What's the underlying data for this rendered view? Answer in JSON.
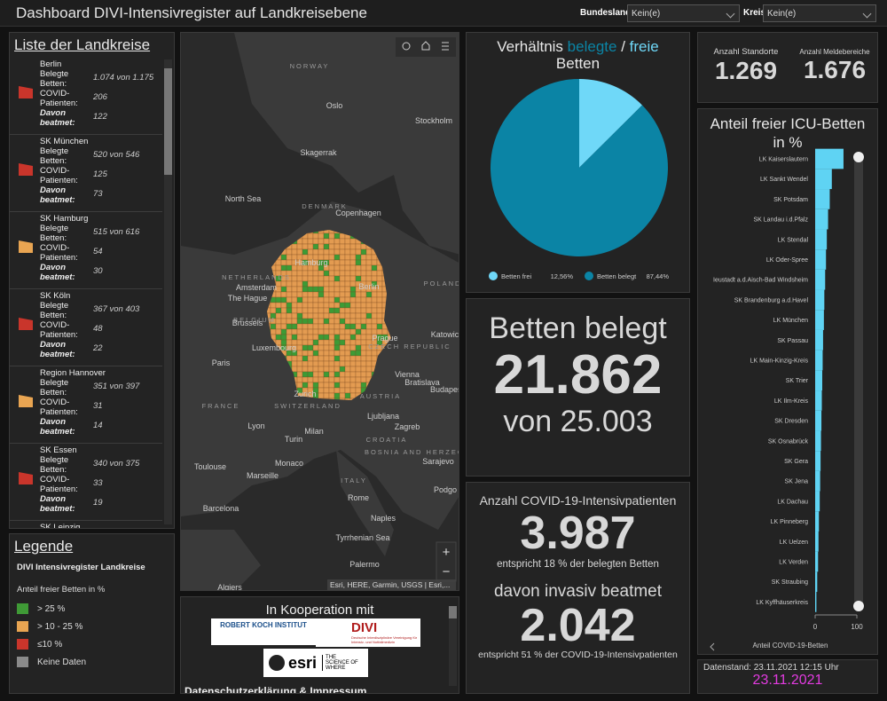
{
  "header": {
    "title": "Dashboard DIVI-Intensivregister auf Landkreisebene",
    "filters": [
      {
        "label": "Bundesland",
        "value": "Kein(e)"
      },
      {
        "label": "Kreis",
        "value": "Kein(e)"
      }
    ]
  },
  "district_list": {
    "title": "Liste der Landkreise",
    "items": [
      {
        "name": "Berlin",
        "color": "#c9352b",
        "fields": [
          {
            "label": "Belegte Betten:",
            "value": "1.074 von 1.175"
          },
          {
            "label": "COVID-Patienten:",
            "value": "206"
          },
          {
            "label": "Davon beatmet:",
            "value": "122"
          }
        ]
      },
      {
        "name": "SK München",
        "color": "#c9352b",
        "fields": [
          {
            "label": "Belegte Betten:",
            "value": "520 von 546"
          },
          {
            "label": "COVID-Patienten:",
            "value": "125"
          },
          {
            "label": "Davon beatmet:",
            "value": "73"
          }
        ]
      },
      {
        "name": "SK Hamburg",
        "color": "#e9a552",
        "fields": [
          {
            "label": "Belegte Betten:",
            "value": "515 von 616"
          },
          {
            "label": "COVID-Patienten:",
            "value": "54"
          },
          {
            "label": "Davon beatmet:",
            "value": "30"
          }
        ]
      },
      {
        "name": "SK Köln",
        "color": "#c9352b",
        "fields": [
          {
            "label": "Belegte Betten:",
            "value": "367 von 403"
          },
          {
            "label": "COVID-Patienten:",
            "value": "48"
          },
          {
            "label": "Davon beatmet:",
            "value": "22"
          }
        ]
      },
      {
        "name": "Region Hannover",
        "color": "#e9a552",
        "fields": [
          {
            "label": "Belegte Betten:",
            "value": "351 von 397"
          },
          {
            "label": "COVID-Patienten:",
            "value": "31"
          },
          {
            "label": "Davon beatmet:",
            "value": "14"
          }
        ]
      },
      {
        "name": "SK Essen",
        "color": "#c9352b",
        "fields": [
          {
            "label": "Belegte Betten:",
            "value": "340 von 375"
          },
          {
            "label": "COVID-Patienten:",
            "value": "33"
          },
          {
            "label": "Davon beatmet:",
            "value": "19"
          }
        ]
      },
      {
        "name": "SK Leipzig",
        "color": "#c9352b",
        "fields": []
      }
    ]
  },
  "legend": {
    "title": "Legende",
    "layer": "DIVI Intensivregister Landkreise",
    "field": "Anteil freier Betten in %",
    "classes": [
      {
        "label": "> 25 %",
        "color": "#3f9a36"
      },
      {
        "label": "> 10 - 25 %",
        "color": "#e9a552"
      },
      {
        "label": "≤10 %",
        "color": "#c9352b"
      },
      {
        "label": "Keine Daten",
        "color": "#8a8a8a"
      }
    ]
  },
  "map": {
    "labels": [
      "NORWAY",
      "Oslo",
      "Stockholm",
      "Skagerrak",
      "North Sea",
      "DENMARK",
      "Copenhagen",
      "NETHERLANDS",
      "Amsterdam",
      "The Hague",
      "Hamburg",
      "Berlin",
      "POLAND",
      "BELGIUM",
      "Brussels",
      "Luxembourg",
      "Paris",
      "FRANCE",
      "Prague",
      "CZECH REPUBLIC",
      "Katowice",
      "Vienna",
      "Bratislava",
      "AUSTRIA",
      "Budapest",
      "Zurich",
      "SWITZERLAND",
      "Ljubljana",
      "Zagreb",
      "Lyon",
      "Milan",
      "Turin",
      "CROATIA",
      "BOSNIA AND HERZEGOVINA",
      "Sarajevo",
      "Toulouse",
      "Marseille",
      "Monaco",
      "ITALY",
      "Rome",
      "Barcelona",
      "Naples",
      "Tyrrhenian Sea",
      "Palermo",
      "Podgo",
      "Algiers"
    ],
    "controls": [
      "+",
      "−"
    ],
    "attribution": "Esri, HERE, Garmin, USGS | Esri,..."
  },
  "cooperation": {
    "title": "In Kooperation mit",
    "logos": [
      "ROBERT KOCH INSTITUT",
      "DIVI",
      "Deutsche Interdisziplinäre Vereinigung für Intensiv- und Notfallmedizin",
      "esri",
      "THE SCIENCE OF WHERE"
    ],
    "link": "Datenschutzerklärung & Impressum"
  },
  "stats": [
    {
      "label": "Anzahl Standorte",
      "value": "1.269"
    },
    {
      "label": "Anzahl Meldebereiche",
      "value": "1.676"
    }
  ],
  "beds": {
    "title": "Betten belegt",
    "value": "21.862",
    "total": "von 25.003"
  },
  "covid": {
    "title": "Anzahl COVID-19-Intensivpatienten",
    "value": "3.987",
    "note": "entspricht 18 % der belegten Betten",
    "ventilated_title": "davon invasiv beatmet",
    "ventilated_value": "2.042",
    "ventilated_note": "entspricht 51 % der COVID-19-Intensivpatienten"
  },
  "date": {
    "label": "Datenstand: 23.11.2021 12:15 Uhr",
    "value": "23.11.2021"
  },
  "chart_data": [
    {
      "type": "pie",
      "title_parts": [
        "Verhältnis",
        "belegte",
        "/",
        "freie",
        "Betten"
      ],
      "categories": [
        "Betten frei",
        "Betten belegt"
      ],
      "values": [
        12.56,
        87.44
      ],
      "value_labels": [
        "12,56%",
        "87,44%"
      ],
      "colors": [
        "#6fd8f8",
        "#0b84a5"
      ]
    },
    {
      "type": "bar",
      "orientation": "horizontal",
      "title": "Anteil freier ICU-Betten in %",
      "x_label": "Anteil COVID-19-Betten",
      "categories": [
        "LK Kaiserslautern",
        "LK Sankt Wendel",
        "SK Potsdam",
        "SK Landau i.d.Pfalz",
        "LK Stendal",
        "LK Oder-Spree",
        "Ieustadt a.d.Aisch-Bad Windsheim",
        "SK Brandenburg a.d.Havel",
        "LK München",
        "SK Passau",
        "LK Main-Kinzig-Kreis",
        "SK Trier",
        "LK Ilm-Kreis",
        "SK Dresden",
        "SK Osnabrück",
        "SK Gera",
        "SK Jena",
        "LK Dachau",
        "LK Pinneberg",
        "LK Uelzen",
        "LK Verden",
        "SK Straubing",
        "LK Kyffhäuserkreis"
      ],
      "values": [
        68,
        40,
        35,
        31,
        28,
        26,
        24,
        22,
        21,
        19,
        18,
        17,
        16,
        15,
        14,
        13,
        12,
        11,
        9,
        8,
        7,
        5,
        3
      ],
      "color": "#5fd3f3",
      "xlim": [
        0,
        100
      ],
      "xticks": [
        0,
        100
      ]
    }
  ]
}
